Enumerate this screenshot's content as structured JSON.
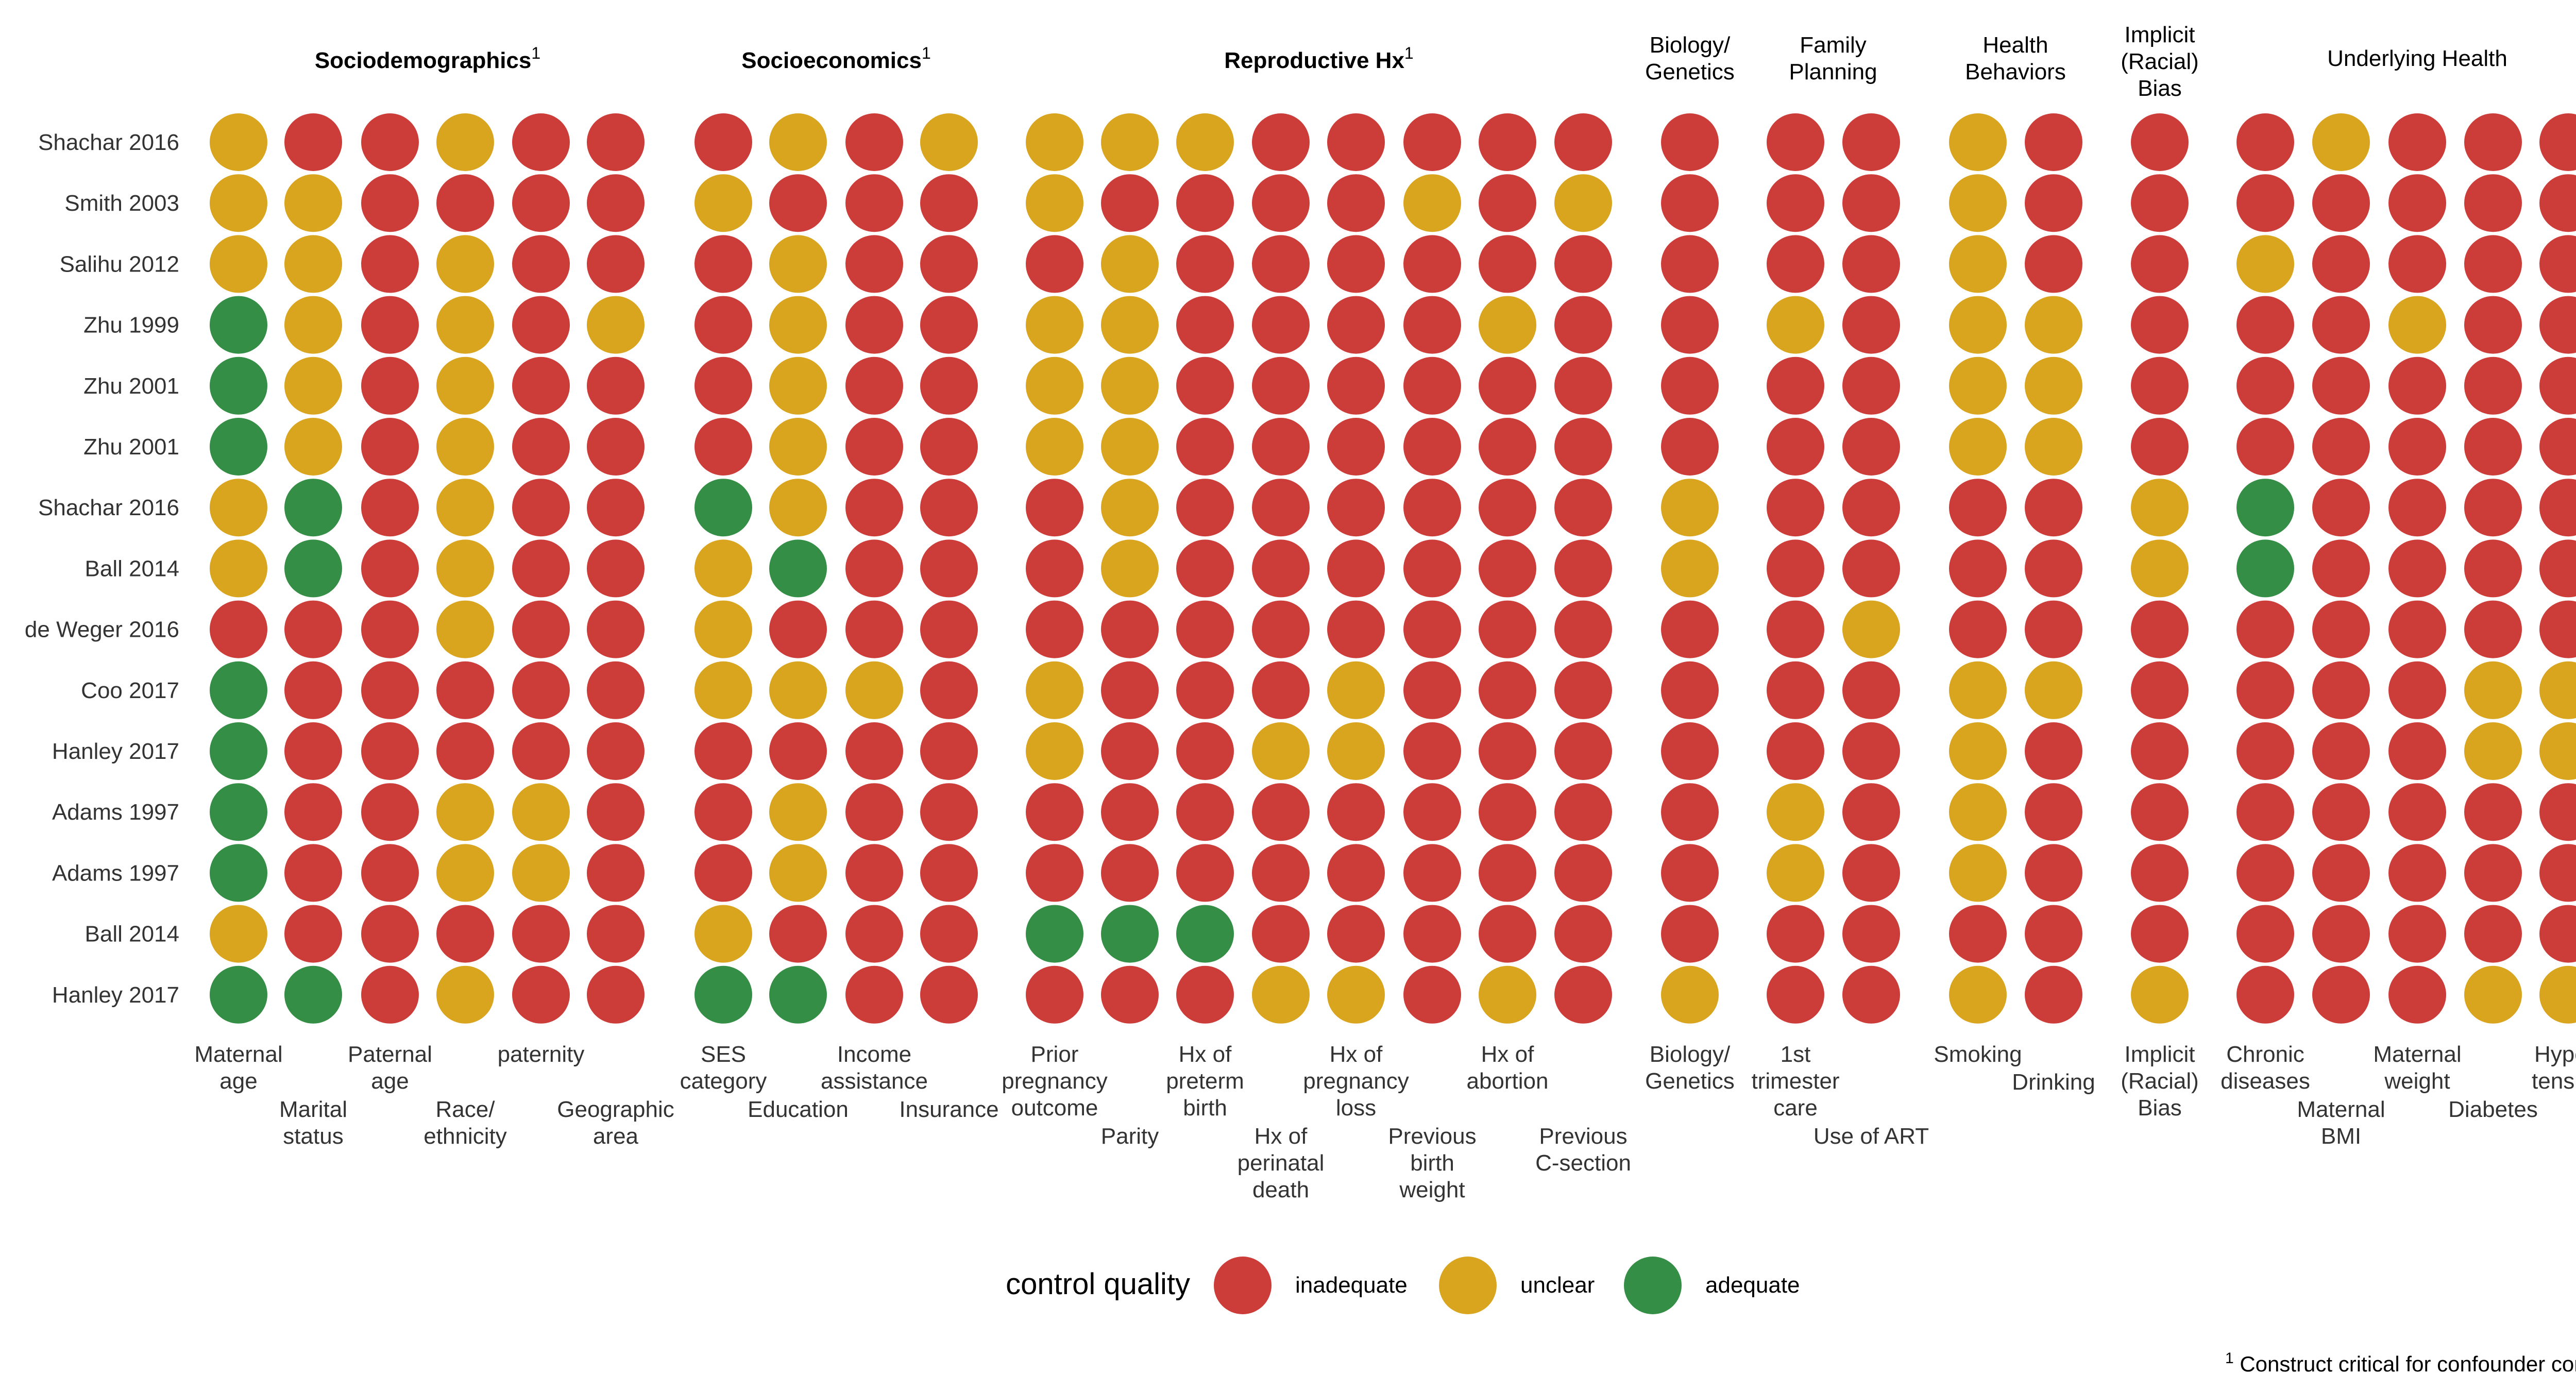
{
  "chart_data": {
    "type": "table",
    "groups": [
      {
        "name": "Sociodemographics",
        "sup": "1",
        "bold": true
      },
      {
        "name": "Socioeconomics",
        "sup": "1",
        "bold": true
      },
      {
        "name": "Reproductive Hx",
        "sup": "1",
        "bold": true
      },
      {
        "name": "Biology/\nGenetics",
        "sup": "",
        "bold": false
      },
      {
        "name": "Family\nPlanning",
        "sup": "",
        "bold": false
      },
      {
        "name": "Health\nBehaviors",
        "sup": "",
        "bold": false
      },
      {
        "name": "Implicit\n(Racial)\nBias",
        "sup": "",
        "bold": false
      },
      {
        "name": "Underlying Health",
        "sup": "",
        "bold": false
      }
    ],
    "columns": [
      {
        "label": "Maternal\nage",
        "group": 0
      },
      {
        "label": "Marital\nstatus",
        "group": 0
      },
      {
        "label": "Paternal\nage",
        "group": 0
      },
      {
        "label": "Race/\nethnicity",
        "group": 0
      },
      {
        "label": "paternity",
        "group": 0
      },
      {
        "label": "Geographic\narea",
        "group": 0
      },
      {
        "label": "SES\ncategory",
        "group": 1
      },
      {
        "label": "Education",
        "group": 1
      },
      {
        "label": "Income\nassistance",
        "group": 1
      },
      {
        "label": "Insurance",
        "group": 1
      },
      {
        "label": "Prior\npregnancy\noutcome",
        "group": 2
      },
      {
        "label": "Parity",
        "group": 2
      },
      {
        "label": "Hx of\npreterm\nbirth",
        "group": 2
      },
      {
        "label": "Hx of\nperinatal\ndeath",
        "group": 2
      },
      {
        "label": "Hx of\npregnancy\nloss",
        "group": 2
      },
      {
        "label": "Previous\nbirth\nweight",
        "group": 2
      },
      {
        "label": "Hx of\nabortion",
        "group": 2
      },
      {
        "label": "Previous\nC-section",
        "group": 2
      },
      {
        "label": "Biology/\nGenetics",
        "group": 3
      },
      {
        "label": "1st\ntrimester\ncare",
        "group": 4
      },
      {
        "label": "Use of ART",
        "group": 4
      },
      {
        "label": "Smoking",
        "group": 5
      },
      {
        "label": "Drinking",
        "group": 5
      },
      {
        "label": "Implicit\n(Racial)\nBias",
        "group": 6
      },
      {
        "label": "Chronic\ndiseases",
        "group": 7
      },
      {
        "label": "Maternal\nBMI",
        "group": 7
      },
      {
        "label": "Maternal\nweight",
        "group": 7
      },
      {
        "label": "Diabetes",
        "group": 7
      },
      {
        "label": "Hyper-\ntension",
        "group": 7
      }
    ],
    "rows": [
      {
        "study": "Shachar 2016",
        "values": [
          "U",
          "I",
          "I",
          "U",
          "I",
          "I",
          "I",
          "U",
          "I",
          "U",
          "U",
          "U",
          "U",
          "I",
          "I",
          "I",
          "I",
          "I",
          "I",
          "I",
          "I",
          "U",
          "I",
          "I",
          "I",
          "U",
          "I",
          "I",
          "I"
        ]
      },
      {
        "study": "Smith 2003",
        "values": [
          "U",
          "U",
          "I",
          "I",
          "I",
          "I",
          "U",
          "I",
          "I",
          "I",
          "U",
          "I",
          "I",
          "I",
          "I",
          "U",
          "I",
          "U",
          "I",
          "I",
          "I",
          "U",
          "I",
          "I",
          "I",
          "I",
          "I",
          "I",
          "I"
        ]
      },
      {
        "study": "Salihu 2012",
        "values": [
          "U",
          "U",
          "I",
          "U",
          "I",
          "I",
          "I",
          "U",
          "I",
          "I",
          "I",
          "U",
          "I",
          "I",
          "I",
          "I",
          "I",
          "I",
          "I",
          "I",
          "I",
          "U",
          "I",
          "I",
          "U",
          "I",
          "I",
          "I",
          "I"
        ]
      },
      {
        "study": "Zhu 1999",
        "values": [
          "A",
          "U",
          "I",
          "U",
          "I",
          "U",
          "I",
          "U",
          "I",
          "I",
          "U",
          "U",
          "I",
          "I",
          "I",
          "I",
          "U",
          "I",
          "I",
          "U",
          "I",
          "U",
          "U",
          "I",
          "I",
          "I",
          "U",
          "I",
          "I"
        ]
      },
      {
        "study": "Zhu 2001",
        "values": [
          "A",
          "U",
          "I",
          "U",
          "I",
          "I",
          "I",
          "U",
          "I",
          "I",
          "U",
          "U",
          "I",
          "I",
          "I",
          "I",
          "I",
          "I",
          "I",
          "I",
          "I",
          "U",
          "U",
          "I",
          "I",
          "I",
          "I",
          "I",
          "I"
        ]
      },
      {
        "study": "Zhu 2001",
        "values": [
          "A",
          "U",
          "I",
          "U",
          "I",
          "I",
          "I",
          "U",
          "I",
          "I",
          "U",
          "U",
          "I",
          "I",
          "I",
          "I",
          "I",
          "I",
          "I",
          "I",
          "I",
          "U",
          "U",
          "I",
          "I",
          "I",
          "I",
          "I",
          "I"
        ]
      },
      {
        "study": "Shachar 2016",
        "values": [
          "U",
          "A",
          "I",
          "U",
          "I",
          "I",
          "A",
          "U",
          "I",
          "I",
          "I",
          "U",
          "I",
          "I",
          "I",
          "I",
          "I",
          "I",
          "U",
          "I",
          "I",
          "I",
          "I",
          "U",
          "A",
          "I",
          "I",
          "I",
          "I"
        ]
      },
      {
        "study": "Ball 2014",
        "values": [
          "U",
          "A",
          "I",
          "U",
          "I",
          "I",
          "U",
          "A",
          "I",
          "I",
          "I",
          "U",
          "I",
          "I",
          "I",
          "I",
          "I",
          "I",
          "U",
          "I",
          "I",
          "I",
          "I",
          "U",
          "A",
          "I",
          "I",
          "I",
          "I"
        ]
      },
      {
        "study": "de Weger 2016",
        "values": [
          "I",
          "I",
          "I",
          "U",
          "I",
          "I",
          "U",
          "I",
          "I",
          "I",
          "I",
          "I",
          "I",
          "I",
          "I",
          "I",
          "I",
          "I",
          "I",
          "I",
          "U",
          "I",
          "I",
          "I",
          "I",
          "I",
          "I",
          "I",
          "I"
        ]
      },
      {
        "study": "Coo 2017",
        "values": [
          "A",
          "I",
          "I",
          "I",
          "I",
          "I",
          "U",
          "U",
          "U",
          "I",
          "U",
          "I",
          "I",
          "I",
          "U",
          "I",
          "I",
          "I",
          "I",
          "I",
          "I",
          "U",
          "U",
          "I",
          "I",
          "I",
          "I",
          "U",
          "U"
        ]
      },
      {
        "study": "Hanley 2017",
        "values": [
          "A",
          "I",
          "I",
          "I",
          "I",
          "I",
          "I",
          "I",
          "I",
          "I",
          "U",
          "I",
          "I",
          "U",
          "U",
          "I",
          "I",
          "I",
          "I",
          "I",
          "I",
          "U",
          "I",
          "I",
          "I",
          "I",
          "I",
          "U",
          "U"
        ]
      },
      {
        "study": "Adams 1997",
        "values": [
          "A",
          "I",
          "I",
          "U",
          "U",
          "I",
          "I",
          "U",
          "I",
          "I",
          "I",
          "I",
          "I",
          "I",
          "I",
          "I",
          "I",
          "I",
          "I",
          "U",
          "I",
          "U",
          "I",
          "I",
          "I",
          "I",
          "I",
          "I",
          "I"
        ]
      },
      {
        "study": "Adams 1997",
        "values": [
          "A",
          "I",
          "I",
          "U",
          "U",
          "I",
          "I",
          "U",
          "I",
          "I",
          "I",
          "I",
          "I",
          "I",
          "I",
          "I",
          "I",
          "I",
          "I",
          "U",
          "I",
          "U",
          "I",
          "I",
          "I",
          "I",
          "I",
          "I",
          "I"
        ]
      },
      {
        "study": "Ball 2014",
        "values": [
          "U",
          "I",
          "I",
          "I",
          "I",
          "I",
          "U",
          "I",
          "I",
          "I",
          "A",
          "A",
          "A",
          "I",
          "I",
          "I",
          "I",
          "I",
          "I",
          "I",
          "I",
          "I",
          "I",
          "I",
          "I",
          "I",
          "I",
          "I",
          "I"
        ]
      },
      {
        "study": "Hanley 2017",
        "values": [
          "A",
          "A",
          "I",
          "U",
          "I",
          "I",
          "A",
          "A",
          "I",
          "I",
          "I",
          "I",
          "I",
          "U",
          "U",
          "I",
          "U",
          "I",
          "U",
          "I",
          "I",
          "U",
          "I",
          "U",
          "I",
          "I",
          "I",
          "U",
          "U"
        ]
      }
    ],
    "levels": {
      "I": "inadequate",
      "U": "unclear",
      "A": "adequate"
    },
    "colors": {
      "I": "#cc3d3a",
      "U": "#d9a41e",
      "A": "#348e45"
    },
    "legend": {
      "title": "control quality",
      "items": [
        {
          "key": "I",
          "label": "inadequate"
        },
        {
          "key": "U",
          "label": "unclear"
        },
        {
          "key": "A",
          "label": "adequate"
        }
      ],
      "position": "bottom"
    },
    "footnote": {
      "sup": "1",
      "text": " Construct critical for confounder control"
    }
  }
}
